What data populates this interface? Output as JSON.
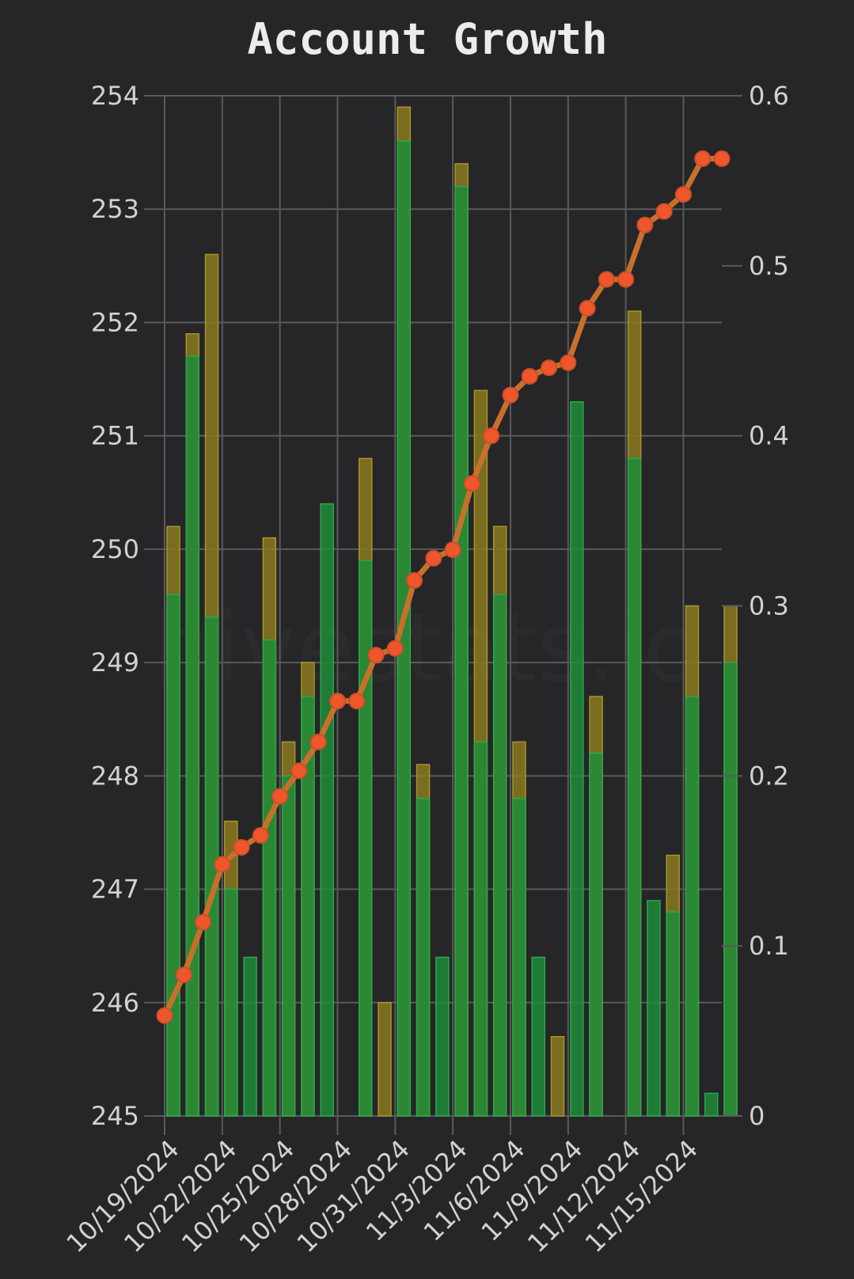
{
  "chart_data": {
    "type": "bar",
    "title": "Account Growth",
    "watermark": "hivestats.io",
    "x_tick_labels": [
      "10/19/2024",
      "10/22/2024",
      "10/25/2024",
      "10/28/2024",
      "10/31/2024",
      "11/3/2024",
      "11/6/2024",
      "11/9/2024",
      "11/12/2024",
      "11/15/2024"
    ],
    "y_left": {
      "range": [
        245,
        254
      ],
      "ticks": [
        245,
        246,
        247,
        248,
        249,
        250,
        251,
        252,
        253,
        254
      ]
    },
    "y_right": {
      "range": [
        0,
        0.6
      ],
      "ticks": [
        0,
        0.1,
        0.2,
        0.3,
        0.4,
        0.5,
        0.6
      ]
    },
    "grid": true,
    "series": [
      {
        "name": "Green bars",
        "type": "bar",
        "axis": "left",
        "color": "#1E8C3A",
        "values": [
          249.6,
          251.7,
          249.4,
          247.0,
          246.4,
          249.2,
          248.0,
          248.7,
          250.4,
          null,
          249.9,
          null,
          253.6,
          247.8,
          246.4,
          253.2,
          248.3,
          249.6,
          247.8,
          246.4,
          null,
          251.3,
          248.2,
          null,
          250.8,
          246.9,
          246.8,
          248.7,
          245.2,
          249.0
        ]
      },
      {
        "name": "Yellow bars",
        "type": "bar",
        "axis": "left",
        "color": "#8A7A1E",
        "values": [
          250.2,
          251.9,
          252.6,
          247.6,
          null,
          250.1,
          248.3,
          249.0,
          null,
          null,
          250.8,
          246.0,
          253.9,
          248.1,
          null,
          253.4,
          251.4,
          250.2,
          248.3,
          null,
          245.7,
          null,
          248.7,
          null,
          252.1,
          null,
          247.3,
          249.5,
          null,
          249.5
        ]
      },
      {
        "name": "Orange line",
        "type": "line",
        "axis": "right",
        "color": "#C8702A",
        "marker_color": "#F0562C",
        "values": [
          0.059,
          0.083,
          0.114,
          0.148,
          0.158,
          0.165,
          0.188,
          0.203,
          0.22,
          0.244,
          0.244,
          0.271,
          0.275,
          0.315,
          0.328,
          0.333,
          0.372,
          0.4,
          0.424,
          0.435,
          0.44,
          0.443,
          0.475,
          0.492,
          0.492,
          0.524,
          0.532,
          0.542,
          0.563,
          0.563
        ]
      }
    ]
  }
}
